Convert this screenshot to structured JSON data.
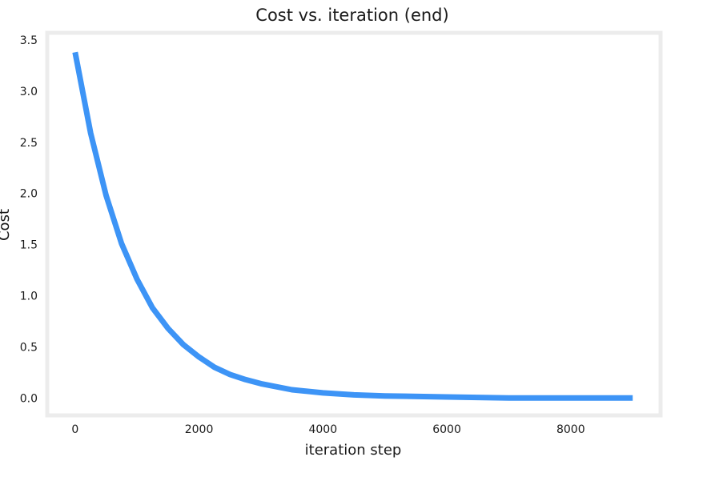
{
  "chart_data": {
    "type": "line",
    "title": "Cost vs. iteration (end)",
    "xlabel": "iteration step",
    "ylabel": "Cost",
    "xlim": [
      -450,
      9450
    ],
    "ylim": [
      -0.17,
      3.57
    ],
    "xticks": [
      {
        "value": 0,
        "label": "0"
      },
      {
        "value": 2000,
        "label": "2000"
      },
      {
        "value": 4000,
        "label": "4000"
      },
      {
        "value": 6000,
        "label": "6000"
      },
      {
        "value": 8000,
        "label": "8000"
      }
    ],
    "yticks": [
      {
        "value": 0.0,
        "label": "0.0"
      },
      {
        "value": 0.5,
        "label": "0.5"
      },
      {
        "value": 1.0,
        "label": "1.0"
      },
      {
        "value": 1.5,
        "label": "1.5"
      },
      {
        "value": 2.0,
        "label": "2.0"
      },
      {
        "value": 2.5,
        "label": "2.5"
      },
      {
        "value": 3.0,
        "label": "3.0"
      },
      {
        "value": 3.5,
        "label": "3.5"
      }
    ],
    "grid": false,
    "series": [
      {
        "color": "#3d94f6",
        "x": [
          0,
          250,
          500,
          750,
          1000,
          1250,
          1500,
          1750,
          2000,
          2250,
          2500,
          2750,
          3000,
          3500,
          4000,
          4500,
          5000,
          6000,
          7000,
          8000,
          9000
        ],
        "y": [
          3.38,
          2.59,
          1.98,
          1.51,
          1.16,
          0.88,
          0.68,
          0.52,
          0.4,
          0.3,
          0.23,
          0.18,
          0.14,
          0.08,
          0.05,
          0.03,
          0.02,
          0.01,
          0.0,
          0.0,
          0.0
        ]
      }
    ]
  }
}
